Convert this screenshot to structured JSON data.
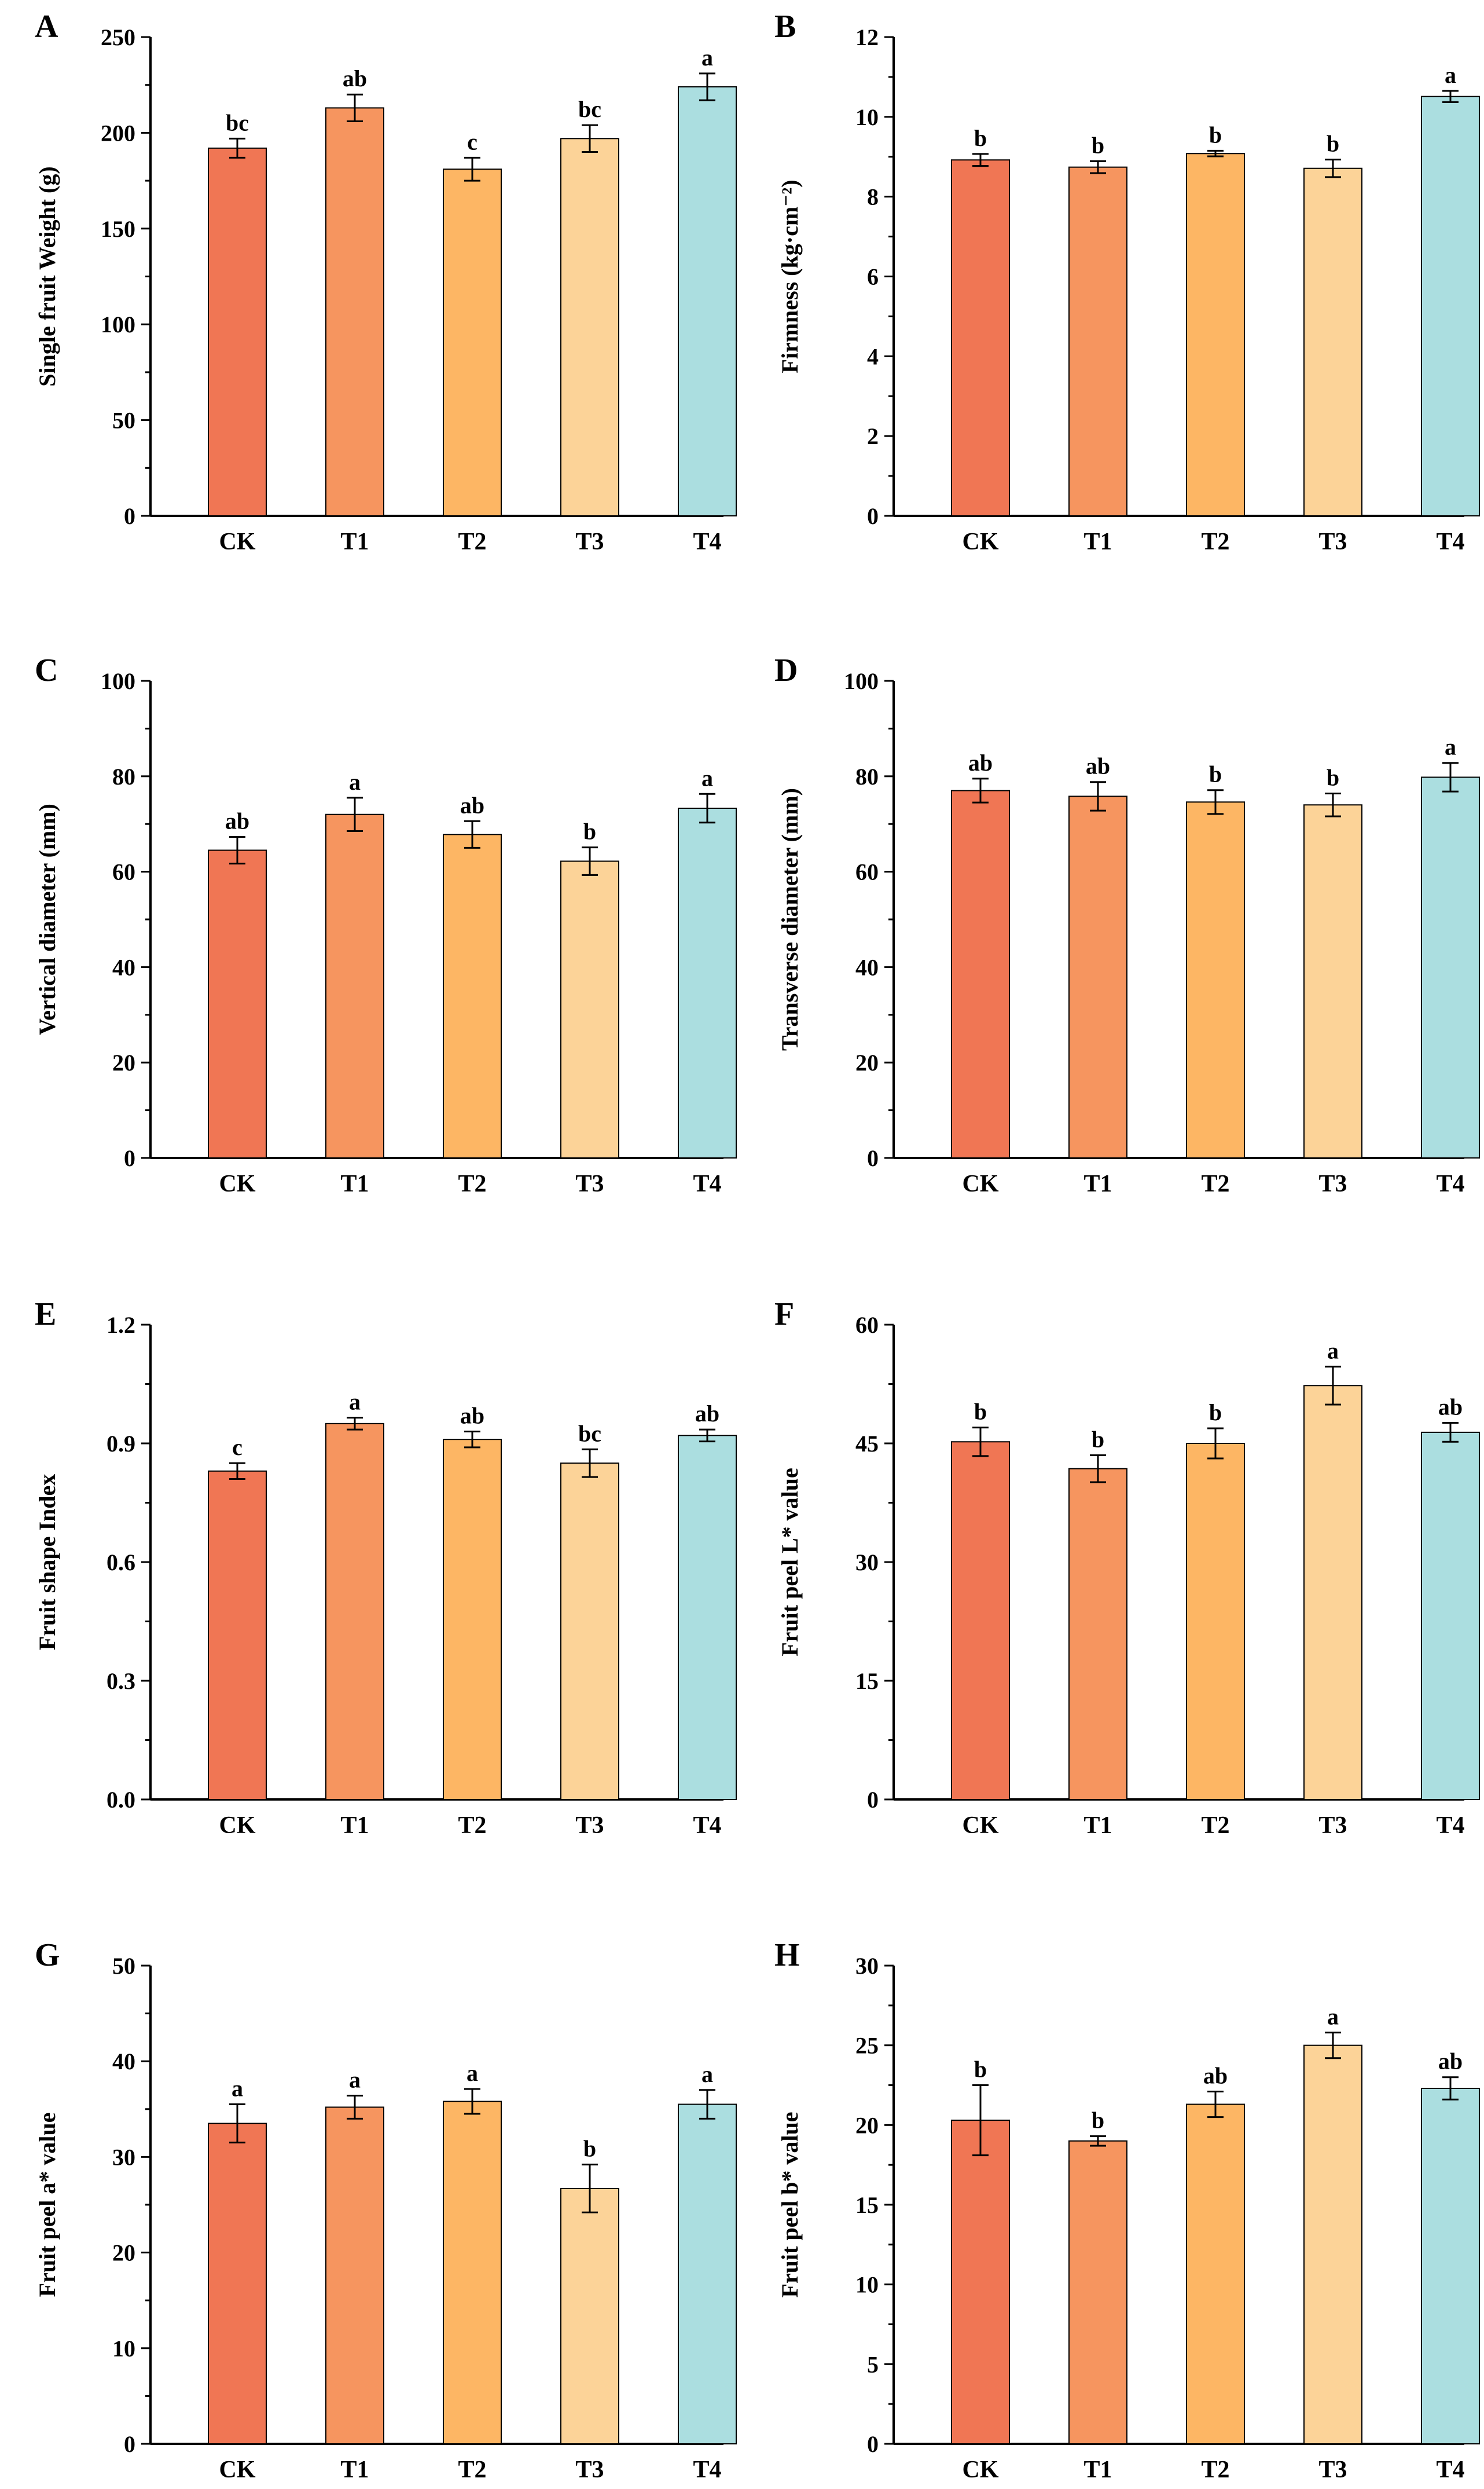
{
  "figure": {
    "colors": {
      "CK": "#F07654",
      "T1": "#F6955F",
      "T2": "#FDB664",
      "T3": "#FCD398",
      "T4": "#ABDEE0"
    }
  },
  "chart_data": [
    {
      "panel": "A",
      "type": "bar",
      "ylabel": "Single fruit Weight (g)",
      "categories": [
        "CK",
        "T1",
        "T2",
        "T3",
        "T4"
      ],
      "values": [
        192,
        213,
        181,
        197,
        224
      ],
      "errors": [
        5,
        7,
        6,
        7,
        7
      ],
      "significance": [
        "bc",
        "ab",
        "c",
        "bc",
        "a"
      ],
      "ylim": [
        0,
        250
      ],
      "yticks": [
        0,
        50,
        100,
        150,
        200,
        250
      ],
      "ytick_labels": [
        "0",
        "50",
        "100",
        "150",
        "200",
        "250"
      ]
    },
    {
      "panel": "B",
      "type": "bar",
      "ylabel": "Firmness (kg·cm⁻²)",
      "categories": [
        "CK",
        "T1",
        "T2",
        "T3",
        "T4"
      ],
      "values": [
        8.92,
        8.74,
        9.08,
        8.71,
        10.51
      ],
      "errors": [
        0.15,
        0.15,
        0.07,
        0.22,
        0.14
      ],
      "significance": [
        "b",
        "b",
        "b",
        "b",
        "a"
      ],
      "ylim": [
        0,
        12
      ],
      "yticks": [
        0,
        2,
        4,
        6,
        8,
        10,
        12
      ],
      "ytick_labels": [
        "0",
        "2",
        "4",
        "6",
        "8",
        "10",
        "12"
      ]
    },
    {
      "panel": "C",
      "type": "bar",
      "ylabel": "Vertical diameter (mm)",
      "categories": [
        "CK",
        "T1",
        "T2",
        "T3",
        "T4"
      ],
      "values": [
        64.5,
        72,
        67.8,
        62.2,
        73.3
      ],
      "errors": [
        2.8,
        3.5,
        2.8,
        2.9,
        3.0
      ],
      "significance": [
        "ab",
        "a",
        "ab",
        "b",
        "a"
      ],
      "ylim": [
        0,
        100
      ],
      "yticks": [
        0,
        20,
        40,
        60,
        80,
        100
      ],
      "ytick_labels": [
        "0",
        "20",
        "40",
        "60",
        "80",
        "100"
      ]
    },
    {
      "panel": "D",
      "type": "bar",
      "ylabel": "Transverse diameter (mm)",
      "categories": [
        "CK",
        "T1",
        "T2",
        "T3",
        "T4"
      ],
      "values": [
        77,
        75.8,
        74.6,
        74,
        79.8
      ],
      "errors": [
        2.5,
        3.0,
        2.5,
        2.4,
        3.0
      ],
      "significance": [
        "ab",
        "ab",
        "b",
        "b",
        "a"
      ],
      "ylim": [
        0,
        100
      ],
      "yticks": [
        0,
        20,
        40,
        60,
        80,
        100
      ],
      "ytick_labels": [
        "0",
        "20",
        "40",
        "60",
        "80",
        "100"
      ]
    },
    {
      "panel": "E",
      "type": "bar",
      "ylabel": "Fruit shape Index",
      "categories": [
        "CK",
        "T1",
        "T2",
        "T3",
        "T4"
      ],
      "values": [
        0.83,
        0.95,
        0.91,
        0.85,
        0.92
      ],
      "errors": [
        0.02,
        0.015,
        0.02,
        0.035,
        0.015
      ],
      "significance": [
        "c",
        "a",
        "ab",
        "bc",
        "ab"
      ],
      "ylim": [
        0,
        1.2
      ],
      "yticks": [
        0,
        0.3,
        0.6,
        0.9,
        1.2
      ],
      "ytick_labels": [
        "0.0",
        "0.3",
        "0.6",
        "0.9",
        "1.2"
      ]
    },
    {
      "panel": "F",
      "type": "bar",
      "ylabel": "Fruit peel L* value",
      "categories": [
        "CK",
        "T1",
        "T2",
        "T3",
        "T4"
      ],
      "values": [
        45.2,
        41.8,
        45,
        52.3,
        46.4
      ],
      "errors": [
        1.8,
        1.7,
        1.9,
        2.4,
        1.2
      ],
      "significance": [
        "b",
        "b",
        "b",
        "a",
        "ab"
      ],
      "ylim": [
        0,
        60
      ],
      "yticks": [
        0,
        15,
        30,
        45,
        60
      ],
      "ytick_labels": [
        "0",
        "15",
        "30",
        "45",
        "60"
      ]
    },
    {
      "panel": "G",
      "type": "bar",
      "ylabel": "Fruit peel a* value",
      "categories": [
        "CK",
        "T1",
        "T2",
        "T3",
        "T4"
      ],
      "values": [
        33.5,
        35.2,
        35.8,
        26.7,
        35.5
      ],
      "errors": [
        2.0,
        1.2,
        1.3,
        2.5,
        1.5
      ],
      "significance": [
        "a",
        "a",
        "a",
        "b",
        "a"
      ],
      "ylim": [
        0,
        50
      ],
      "yticks": [
        0,
        10,
        20,
        30,
        40,
        50
      ],
      "ytick_labels": [
        "0",
        "10",
        "20",
        "30",
        "40",
        "50"
      ]
    },
    {
      "panel": "H",
      "type": "bar",
      "ylabel": "Fruit peel b* value",
      "categories": [
        "CK",
        "T1",
        "T2",
        "T3",
        "T4"
      ],
      "values": [
        20.3,
        19,
        21.3,
        25,
        22.3
      ],
      "errors": [
        2.2,
        0.3,
        0.8,
        0.8,
        0.7
      ],
      "significance": [
        "b",
        "b",
        "ab",
        "a",
        "ab"
      ],
      "ylim": [
        0,
        30
      ],
      "yticks": [
        0,
        5,
        10,
        15,
        20,
        25,
        30
      ],
      "ytick_labels": [
        "0",
        "5",
        "10",
        "15",
        "20",
        "25",
        "30"
      ]
    }
  ]
}
